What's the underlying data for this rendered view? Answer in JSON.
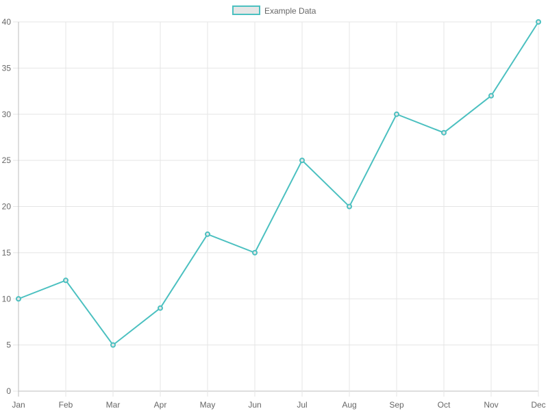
{
  "chart_data": {
    "type": "line",
    "categories": [
      "Jan",
      "Feb",
      "Mar",
      "Apr",
      "May",
      "Jun",
      "Jul",
      "Aug",
      "Sep",
      "Oct",
      "Nov",
      "Dec"
    ],
    "series": [
      {
        "name": "Example Data",
        "values": [
          10,
          12,
          5,
          9,
          17,
          15,
          25,
          20,
          30,
          28,
          32,
          40
        ],
        "color": "#4bc0c0",
        "fill_color": "#e6e6e6"
      }
    ],
    "yticks": [
      "0",
      "5",
      "10",
      "15",
      "20",
      "25",
      "30",
      "35",
      "40"
    ],
    "ylim": [
      0,
      40
    ],
    "grid": true,
    "legend": "top-center",
    "title": "",
    "xlabel": "",
    "ylabel": ""
  }
}
